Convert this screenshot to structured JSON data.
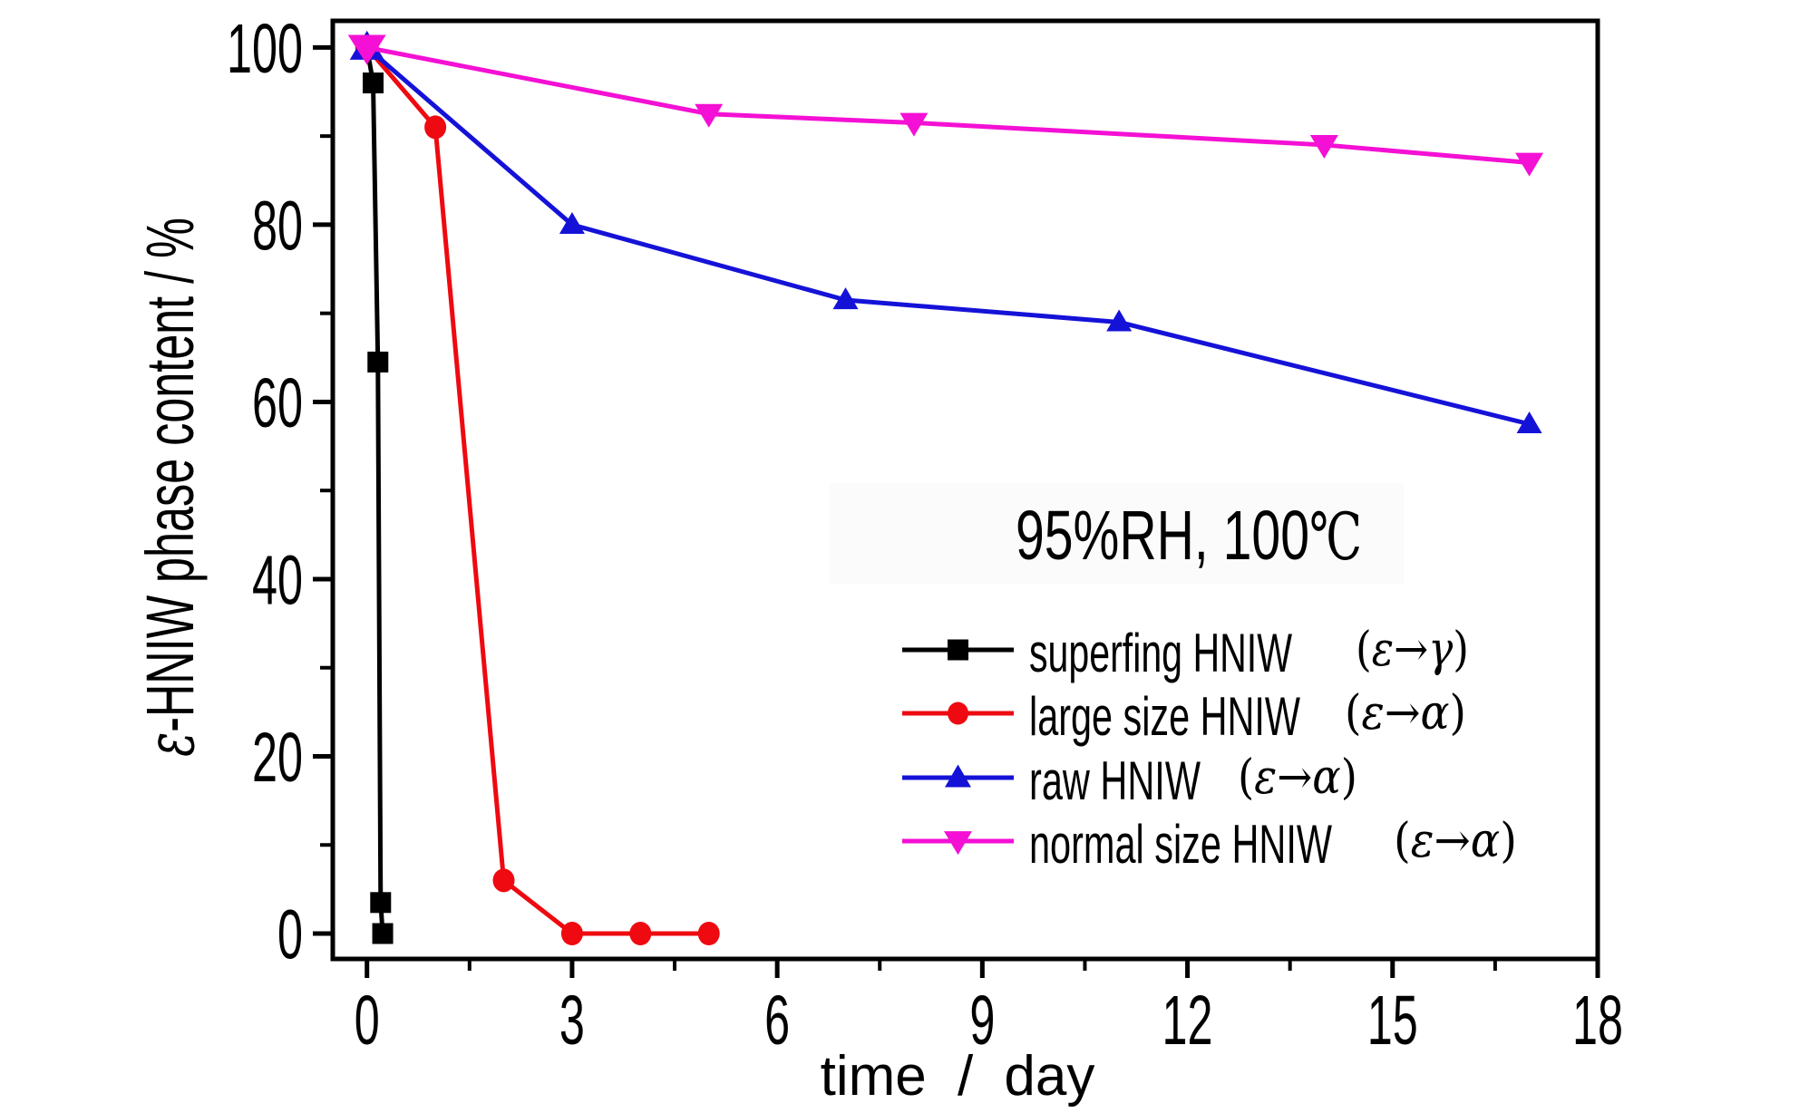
{
  "chart_data": {
    "type": "line",
    "annotation": {
      "main": "95%RH, 100",
      "degree": "℃"
    },
    "xlabel": "time / day",
    "ylabel": {
      "epsilon": "ε",
      "rest": "-HNIW phase content / %"
    },
    "xlim": [
      -0.5,
      18
    ],
    "ylim": [
      -2.9,
      103
    ],
    "xticks_major": [
      0,
      3,
      6,
      9,
      12,
      15,
      18
    ],
    "xticks_minor": [
      1.5,
      4.5,
      7.5,
      10.5,
      13.5,
      16.5
    ],
    "yticks_major": [
      0,
      20,
      40,
      60,
      80,
      100
    ],
    "yticks_minor": [
      10,
      30,
      50,
      70,
      90
    ],
    "grid": false,
    "legend_position": "inside lower right",
    "series": [
      {
        "name": "superfing HNIW",
        "transition_open": "(",
        "transition_from": "ε",
        "transition_arrow": "→",
        "transition_to": "γ",
        "transition_close": ")",
        "color": "#000000",
        "marker": "square",
        "x": [
          0,
          0.09,
          0.16,
          0.2,
          0.23
        ],
        "y": [
          100,
          96,
          64.5,
          3.5,
          0
        ]
      },
      {
        "name": "large size HNIW",
        "transition_open": "(",
        "transition_from": "ε",
        "transition_arrow": "→",
        "transition_to": "α",
        "transition_close": ")",
        "color": "#ee0a10",
        "marker": "circle",
        "x": [
          0,
          1,
          2,
          3,
          4,
          5
        ],
        "y": [
          100,
          91,
          6,
          0,
          0,
          0
        ]
      },
      {
        "name": "raw HNIW",
        "transition_open": "(",
        "transition_from": "ε",
        "transition_arrow": "→",
        "transition_to": "α",
        "transition_close": ")",
        "color": "#1512d8",
        "marker": "triangle-up",
        "x": [
          0,
          3,
          7,
          11,
          17
        ],
        "y": [
          100,
          80,
          71.5,
          69,
          57.5
        ]
      },
      {
        "name": "normal size HNIW",
        "transition_open": "(",
        "transition_from": "ε",
        "transition_arrow": "→",
        "transition_to": "α",
        "transition_close": ")",
        "color": "#f410d4",
        "marker": "triangle-down",
        "x": [
          0,
          5,
          8,
          14,
          17
        ],
        "y": [
          100,
          92.5,
          91.5,
          89,
          87
        ]
      }
    ]
  }
}
